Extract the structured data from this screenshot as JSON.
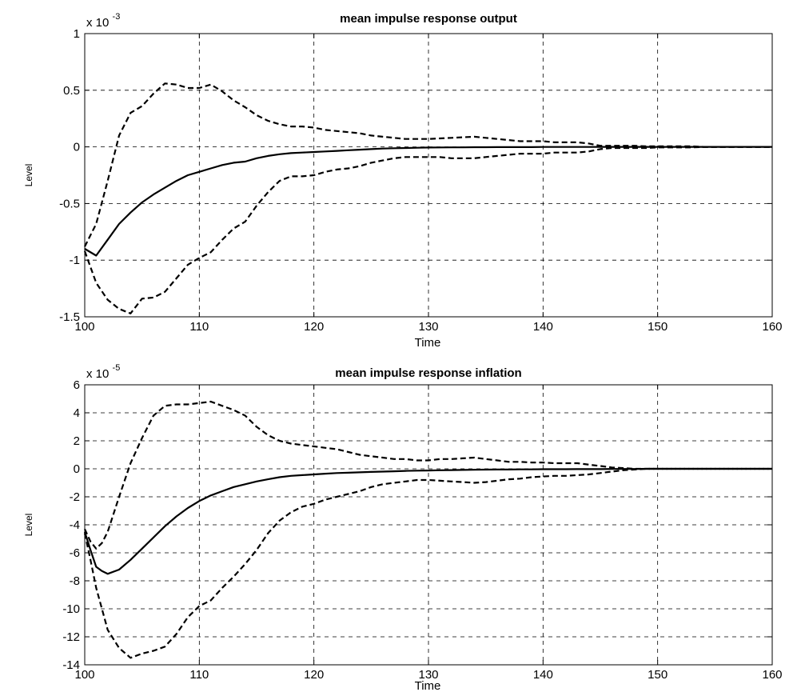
{
  "chart_data": [
    {
      "type": "line",
      "title": "mean impulse response output",
      "xlabel": "Time",
      "ylabel": "Level",
      "scale_label_base": "x 10",
      "scale_label_exp": "-3",
      "xlim": [
        100,
        160
      ],
      "ylim": [
        -1.5,
        1
      ],
      "xticks": [
        100,
        110,
        120,
        130,
        140,
        150,
        160
      ],
      "yticks": [
        -1.5,
        -1,
        -0.5,
        0,
        0.5,
        1
      ],
      "ytick_labels": [
        "-1.5",
        "-1",
        "-0.5",
        "0",
        "0.5",
        "1"
      ],
      "grid": true,
      "x": [
        100,
        101,
        102,
        103,
        104,
        105,
        106,
        107,
        108,
        109,
        110,
        111,
        112,
        113,
        114,
        115,
        116,
        117,
        118,
        119,
        120,
        121,
        122,
        123,
        124,
        125,
        126,
        127,
        128,
        129,
        130,
        131,
        132,
        133,
        134,
        135,
        136,
        137,
        138,
        139,
        140,
        141,
        142,
        143,
        144,
        145,
        146,
        147,
        148,
        149,
        150,
        151,
        152,
        153,
        154,
        155,
        156,
        157,
        158,
        159,
        160
      ],
      "series": [
        {
          "style": "solid",
          "values": [
            -0.9,
            -0.96,
            -0.82,
            -0.68,
            -0.58,
            -0.49,
            -0.42,
            -0.36,
            -0.3,
            -0.25,
            -0.22,
            -0.19,
            -0.16,
            -0.14,
            -0.13,
            -0.1,
            -0.08,
            -0.065,
            -0.055,
            -0.05,
            -0.045,
            -0.04,
            -0.035,
            -0.03,
            -0.025,
            -0.02,
            -0.015,
            -0.012,
            -0.01,
            -0.008,
            -0.006,
            -0.005,
            -0.004,
            -0.004,
            -0.003,
            -0.003,
            -0.002,
            -0.002,
            -0.002,
            -0.002,
            -0.001,
            -0.001,
            -0.001,
            -0.001,
            -0.001,
            0,
            0,
            0,
            0,
            0,
            0,
            0,
            0,
            0,
            0,
            0,
            0,
            0,
            0,
            0,
            0
          ]
        },
        {
          "style": "dashed",
          "values": [
            -0.88,
            -0.68,
            -0.3,
            0.1,
            0.3,
            0.36,
            0.47,
            0.56,
            0.55,
            0.52,
            0.52,
            0.55,
            0.49,
            0.41,
            0.35,
            0.28,
            0.23,
            0.2,
            0.18,
            0.18,
            0.17,
            0.15,
            0.14,
            0.13,
            0.12,
            0.1,
            0.09,
            0.08,
            0.07,
            0.07,
            0.07,
            0.075,
            0.08,
            0.085,
            0.09,
            0.08,
            0.07,
            0.06,
            0.05,
            0.05,
            0.05,
            0.04,
            0.04,
            0.04,
            0.03,
            0.01,
            0.01,
            0.01,
            0.01,
            0.005,
            0.005,
            0.005,
            0.005,
            0.005,
            0,
            0,
            0,
            0,
            0,
            0,
            0
          ]
        },
        {
          "style": "dashed",
          "values": [
            -0.92,
            -1.2,
            -1.35,
            -1.43,
            -1.47,
            -1.34,
            -1.33,
            -1.28,
            -1.16,
            -1.04,
            -0.98,
            -0.93,
            -0.82,
            -0.72,
            -0.66,
            -0.52,
            -0.4,
            -0.3,
            -0.26,
            -0.26,
            -0.25,
            -0.22,
            -0.2,
            -0.19,
            -0.17,
            -0.14,
            -0.12,
            -0.1,
            -0.09,
            -0.09,
            -0.09,
            -0.09,
            -0.1,
            -0.1,
            -0.1,
            -0.09,
            -0.08,
            -0.07,
            -0.06,
            -0.06,
            -0.06,
            -0.05,
            -0.05,
            -0.05,
            -0.04,
            -0.02,
            -0.01,
            -0.01,
            -0.01,
            -0.01,
            -0.005,
            -0.005,
            -0.005,
            -0.005,
            0,
            0,
            0,
            0,
            0,
            0,
            0
          ]
        }
      ]
    },
    {
      "type": "line",
      "title": "mean impulse response inflation",
      "xlabel": "Time",
      "ylabel": "Level",
      "scale_label_base": "x 10",
      "scale_label_exp": "-5",
      "xlim": [
        100,
        160
      ],
      "ylim": [
        -14,
        6
      ],
      "xticks": [
        100,
        110,
        120,
        130,
        140,
        150,
        160
      ],
      "yticks": [
        -14,
        -12,
        -10,
        -8,
        -6,
        -4,
        -2,
        0,
        2,
        4,
        6
      ],
      "ytick_labels": [
        "-14",
        "-12",
        "-10",
        "-8",
        "-6",
        "-4",
        "-2",
        "0",
        "2",
        "4",
        "6"
      ],
      "grid": true,
      "x": [
        100,
        100.5,
        101,
        101.5,
        102,
        103,
        104,
        105,
        106,
        107,
        108,
        109,
        110,
        111,
        112,
        113,
        114,
        115,
        116,
        117,
        118,
        119,
        120,
        121,
        122,
        123,
        124,
        125,
        126,
        127,
        128,
        129,
        130,
        131,
        132,
        133,
        134,
        135,
        136,
        137,
        138,
        139,
        140,
        141,
        142,
        143,
        144,
        145,
        146,
        147,
        148,
        149,
        150,
        151,
        152,
        153,
        154,
        155,
        156,
        157,
        158,
        159,
        160
      ],
      "series": [
        {
          "style": "solid",
          "values": [
            -4.5,
            -5.8,
            -7.0,
            -7.3,
            -7.5,
            -7.2,
            -6.5,
            -5.7,
            -4.9,
            -4.1,
            -3.4,
            -2.8,
            -2.3,
            -1.9,
            -1.6,
            -1.3,
            -1.1,
            -0.9,
            -0.75,
            -0.6,
            -0.5,
            -0.45,
            -0.4,
            -0.35,
            -0.3,
            -0.28,
            -0.25,
            -0.22,
            -0.2,
            -0.18,
            -0.15,
            -0.13,
            -0.12,
            -0.1,
            -0.09,
            -0.08,
            -0.07,
            -0.06,
            -0.05,
            -0.05,
            -0.04,
            -0.04,
            -0.03,
            -0.03,
            -0.03,
            -0.02,
            -0.02,
            -0.02,
            -0.01,
            -0.01,
            -0.01,
            0,
            0,
            0,
            0,
            0,
            0,
            0,
            0,
            0,
            0,
            0,
            0
          ]
        },
        {
          "style": "dashed",
          "values": [
            -4.3,
            -5.2,
            -5.7,
            -5.3,
            -4.5,
            -2.0,
            0.4,
            2.2,
            3.8,
            4.5,
            4.6,
            4.6,
            4.7,
            4.8,
            4.5,
            4.2,
            3.8,
            3.0,
            2.4,
            2.0,
            1.8,
            1.7,
            1.6,
            1.5,
            1.4,
            1.2,
            1.0,
            0.9,
            0.8,
            0.7,
            0.7,
            0.6,
            0.6,
            0.7,
            0.7,
            0.75,
            0.8,
            0.7,
            0.6,
            0.5,
            0.5,
            0.45,
            0.45,
            0.4,
            0.4,
            0.4,
            0.3,
            0.2,
            0.1,
            0.05,
            0,
            0,
            0,
            0,
            0,
            0,
            0,
            0,
            0,
            0,
            0,
            0,
            0
          ]
        },
        {
          "style": "dashed",
          "values": [
            -4.6,
            -6.5,
            -8.5,
            -10.0,
            -11.5,
            -12.8,
            -13.5,
            -13.2,
            -13.0,
            -12.7,
            -11.8,
            -10.6,
            -9.8,
            -9.4,
            -8.5,
            -7.7,
            -6.8,
            -5.8,
            -4.6,
            -3.7,
            -3.1,
            -2.7,
            -2.5,
            -2.2,
            -2.0,
            -1.8,
            -1.6,
            -1.3,
            -1.1,
            -1.0,
            -0.9,
            -0.8,
            -0.8,
            -0.85,
            -0.9,
            -0.95,
            -1.0,
            -0.95,
            -0.85,
            -0.75,
            -0.7,
            -0.6,
            -0.55,
            -0.5,
            -0.5,
            -0.45,
            -0.4,
            -0.3,
            -0.2,
            -0.1,
            -0.05,
            0,
            0,
            0,
            0,
            0,
            0,
            0,
            0,
            0,
            0,
            0,
            0
          ]
        }
      ]
    }
  ]
}
